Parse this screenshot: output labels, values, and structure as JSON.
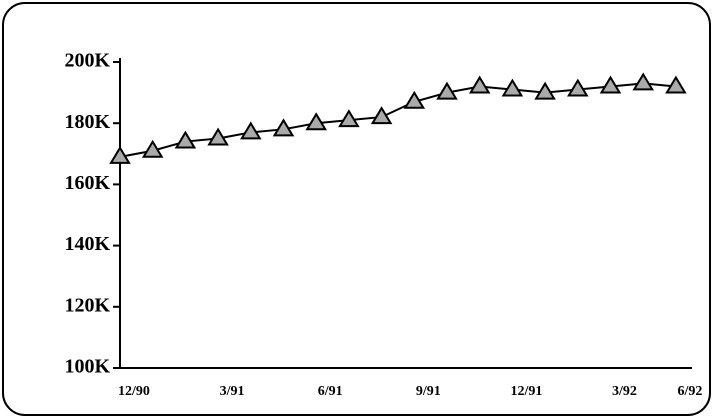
{
  "chart_data": {
    "type": "line",
    "categories": [
      "12/90",
      null,
      null,
      "3/91",
      null,
      null,
      "6/91",
      null,
      null,
      "9/91",
      null,
      null,
      "12/91",
      null,
      null,
      "3/92",
      null,
      "6/92"
    ],
    "series": [
      {
        "color": "#000000",
        "values": [
          169000,
          171000,
          174000,
          175000,
          177000,
          178000,
          180000,
          181000,
          182000,
          187000,
          190000,
          192000,
          191000,
          190000,
          191000,
          192000,
          193000,
          192000
        ]
      }
    ],
    "ylim": [
      100000,
      200000
    ],
    "yticks": [
      {
        "value": 100000,
        "label": "100K"
      },
      {
        "value": 120000,
        "label": "120K"
      },
      {
        "value": 140000,
        "label": "140K"
      },
      {
        "value": 160000,
        "label": "160K"
      },
      {
        "value": 180000,
        "label": "180K"
      },
      {
        "value": 200000,
        "label": "200K"
      }
    ],
    "grid": false
  }
}
